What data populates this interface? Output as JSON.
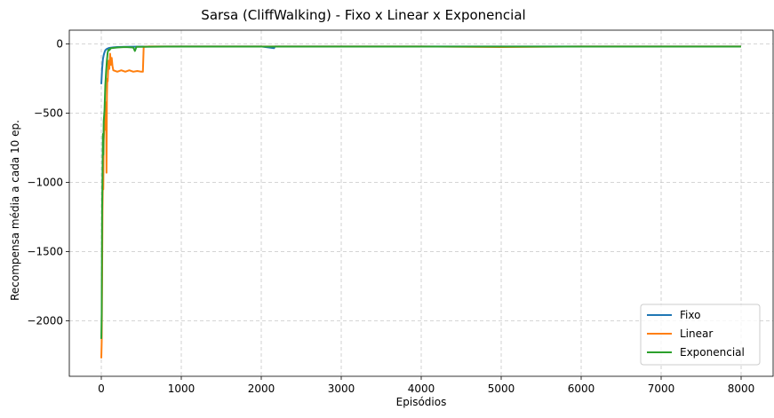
{
  "chart_data": {
    "type": "line",
    "title": "Sarsa (CliffWalking) - Fixo x Linear x Exponencial",
    "xlabel": "Episódios",
    "ylabel": "Recompensa média a cada 10 ep.",
    "xlim": [
      -400,
      8400
    ],
    "ylim": [
      -2400,
      100
    ],
    "xticks": [
      0,
      1000,
      2000,
      3000,
      4000,
      5000,
      6000,
      7000,
      8000
    ],
    "yticks": [
      0,
      -500,
      -1000,
      -1500,
      -2000
    ],
    "xtick_labels": [
      "0",
      "1000",
      "2000",
      "3000",
      "4000",
      "5000",
      "6000",
      "7000",
      "8000"
    ],
    "ytick_labels": [
      "0",
      "−500",
      "−1000",
      "−1500",
      "−2000"
    ],
    "grid": true,
    "legend_position": "lower-right",
    "series": [
      {
        "name": "Fixo",
        "color": "#1f77b4",
        "points": [
          [
            0,
            -290
          ],
          [
            10,
            -180
          ],
          [
            20,
            -110
          ],
          [
            30,
            -80
          ],
          [
            40,
            -60
          ],
          [
            50,
            -45
          ],
          [
            70,
            -35
          ],
          [
            100,
            -28
          ],
          [
            150,
            -24
          ],
          [
            200,
            -22
          ],
          [
            300,
            -20
          ],
          [
            500,
            -19
          ],
          [
            1000,
            -18
          ],
          [
            1500,
            -18
          ],
          [
            2000,
            -18
          ],
          [
            2160,
            -30
          ],
          [
            2170,
            -18
          ],
          [
            3000,
            -18
          ],
          [
            4000,
            -18
          ],
          [
            5000,
            -18
          ],
          [
            6000,
            -18
          ],
          [
            7000,
            -18
          ],
          [
            8000,
            -18
          ]
        ]
      },
      {
        "name": "Linear",
        "color": "#ff7f0e",
        "points": [
          [
            0,
            -2270
          ],
          [
            5,
            -2150
          ],
          [
            10,
            -1700
          ],
          [
            15,
            -1200
          ],
          [
            20,
            -960
          ],
          [
            25,
            -1050
          ],
          [
            30,
            -700
          ],
          [
            40,
            -560
          ],
          [
            50,
            -420
          ],
          [
            55,
            -620
          ],
          [
            60,
            -450
          ],
          [
            65,
            -930
          ],
          [
            70,
            -380
          ],
          [
            75,
            -250
          ],
          [
            80,
            -270
          ],
          [
            90,
            -120
          ],
          [
            100,
            -180
          ],
          [
            110,
            -70
          ],
          [
            120,
            -150
          ],
          [
            130,
            -100
          ],
          [
            140,
            -160
          ],
          [
            150,
            -190
          ],
          [
            200,
            -200
          ],
          [
            250,
            -190
          ],
          [
            300,
            -200
          ],
          [
            350,
            -190
          ],
          [
            400,
            -200
          ],
          [
            450,
            -195
          ],
          [
            500,
            -200
          ],
          [
            520,
            -200
          ],
          [
            530,
            -20
          ],
          [
            600,
            -18
          ],
          [
            1000,
            -18
          ],
          [
            2000,
            -18
          ],
          [
            3000,
            -18
          ],
          [
            4000,
            -18
          ],
          [
            5000,
            -22
          ],
          [
            6000,
            -18
          ],
          [
            7000,
            -18
          ],
          [
            8000,
            -18
          ]
        ]
      },
      {
        "name": "Exponencial",
        "color": "#2ca02c",
        "points": [
          [
            0,
            -2130
          ],
          [
            5,
            -1950
          ],
          [
            10,
            -1200
          ],
          [
            15,
            -950
          ],
          [
            20,
            -650
          ],
          [
            25,
            -800
          ],
          [
            30,
            -560
          ],
          [
            40,
            -480
          ],
          [
            50,
            -300
          ],
          [
            60,
            -200
          ],
          [
            70,
            -120
          ],
          [
            80,
            -60
          ],
          [
            90,
            -40
          ],
          [
            100,
            -45
          ],
          [
            120,
            -30
          ],
          [
            150,
            -28
          ],
          [
            200,
            -25
          ],
          [
            300,
            -22
          ],
          [
            400,
            -25
          ],
          [
            420,
            -50
          ],
          [
            440,
            -20
          ],
          [
            500,
            -20
          ],
          [
            800,
            -19
          ],
          [
            1000,
            -19
          ],
          [
            2000,
            -19
          ],
          [
            3000,
            -19
          ],
          [
            4000,
            -19
          ],
          [
            5000,
            -19
          ],
          [
            6000,
            -19
          ],
          [
            7000,
            -19
          ],
          [
            8000,
            -19
          ]
        ]
      }
    ]
  }
}
